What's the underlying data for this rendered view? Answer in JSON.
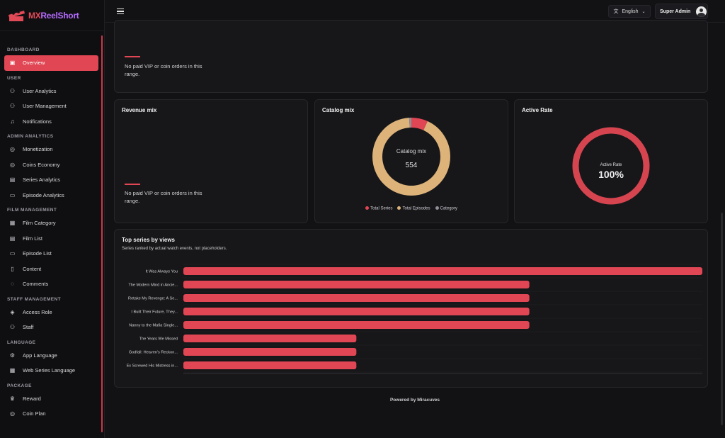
{
  "brand": {
    "name_a": "MX",
    "name_b": "ReelShort"
  },
  "topbar": {
    "language": "English",
    "user": "Super Admin"
  },
  "sidebar": {
    "sections": [
      {
        "title": "DASHBOARD",
        "items": [
          {
            "label": "Overview",
            "icon": "dashboard-icon",
            "active": true
          }
        ]
      },
      {
        "title": "USER",
        "items": [
          {
            "label": "User Analytics",
            "icon": "users-icon"
          },
          {
            "label": "User Management",
            "icon": "users-icon"
          },
          {
            "label": "Notifications",
            "icon": "bell-icon"
          }
        ]
      },
      {
        "title": "ADMIN ANALYTICS",
        "items": [
          {
            "label": "Monetization",
            "icon": "coins-icon"
          },
          {
            "label": "Coins Economy",
            "icon": "coins-icon"
          },
          {
            "label": "Series Analytics",
            "icon": "list-icon"
          },
          {
            "label": "Episode Analytics",
            "icon": "video-icon"
          }
        ]
      },
      {
        "title": "FILM MANAGEMENT",
        "items": [
          {
            "label": "Film Category",
            "icon": "grid-icon"
          },
          {
            "label": "Film List",
            "icon": "list-icon"
          },
          {
            "label": "Episode List",
            "icon": "video-icon"
          },
          {
            "label": "Content",
            "icon": "file-icon"
          },
          {
            "label": "Comments",
            "icon": "comment-icon"
          }
        ]
      },
      {
        "title": "STAFF MANAGEMENT",
        "items": [
          {
            "label": "Access Role",
            "icon": "shield-icon"
          },
          {
            "label": "Staff",
            "icon": "users-icon"
          }
        ]
      },
      {
        "title": "LANGUAGE",
        "items": [
          {
            "label": "App Language",
            "icon": "gear-icon"
          },
          {
            "label": "Web Series Language",
            "icon": "grid-icon"
          }
        ]
      },
      {
        "title": "PACKAGE",
        "items": [
          {
            "label": "Reward",
            "icon": "reward-icon"
          },
          {
            "label": "Coin Plan",
            "icon": "coins-icon"
          }
        ]
      }
    ]
  },
  "top_card": {
    "empty": "No paid VIP or coin orders in this range."
  },
  "revenue_mix": {
    "title": "Revenue mix",
    "empty": "No paid VIP or coin orders in this range."
  },
  "catalog_mix": {
    "title": "Catalog mix",
    "center_label": "Catalog mix",
    "center_value": "554",
    "colors": {
      "series": "#e04653",
      "episodes": "#ddb37a",
      "category": "#8f8f96"
    },
    "legend": [
      "Total Series",
      "Total Episodes",
      "Category"
    ]
  },
  "active_rate": {
    "title": "Active Rate",
    "label": "Active Rate",
    "value": "100%",
    "fraction": 1.0
  },
  "top_series": {
    "title": "Top series by views",
    "subtitle": "Series ranked by actual watch events, not placeholders."
  },
  "chart_data": [
    {
      "type": "pie",
      "title": "Catalog mix",
      "labels": [
        "Total Series",
        "Total Episodes",
        "Category"
      ],
      "values": [
        38,
        510,
        6
      ],
      "legend": "bottom"
    },
    {
      "type": "bar",
      "orientation": "horizontal",
      "title": "Top series by views",
      "categories": [
        "It Was Always You",
        "The Modern Mind in Ancie...",
        "Retake My Revenge: A Se...",
        "I Built Their Future, They...",
        "Nanny to the Mafia Single...",
        "The Years We Missed",
        "Godfall: Heaven's Reckon...",
        "Ex Screwed His Mistress in..."
      ],
      "values": [
        3,
        2,
        2,
        2,
        2,
        1,
        1,
        1
      ],
      "xlim": [
        0,
        3
      ],
      "grid": true,
      "color": "#e04653"
    }
  ],
  "footer": "Powered by Miracuves"
}
